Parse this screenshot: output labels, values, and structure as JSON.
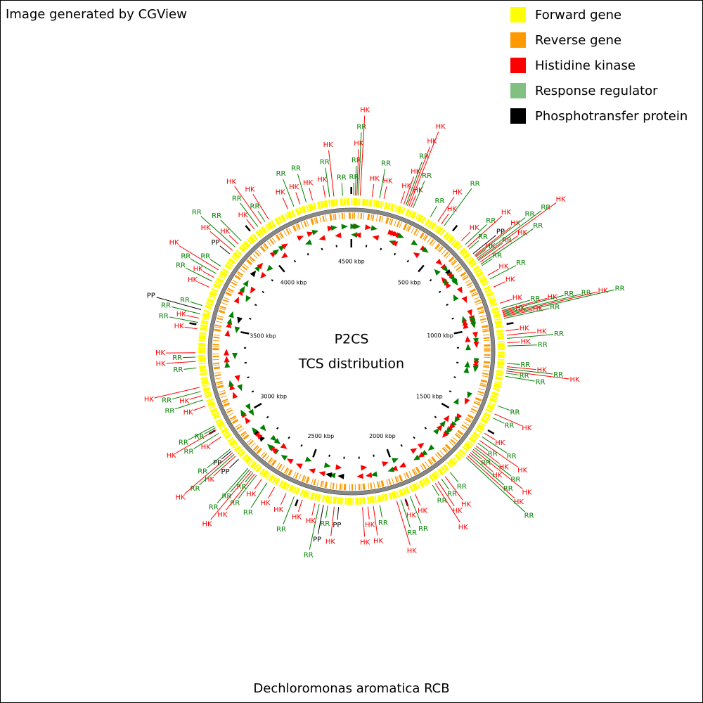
{
  "header": {
    "title": "Image generated by CGView"
  },
  "legend": [
    {
      "label": "Forward gene",
      "color": "#ffff00"
    },
    {
      "label": "Reverse gene",
      "color": "#ff9900"
    },
    {
      "label": "Histidine kinase",
      "color": "#ff0000"
    },
    {
      "label": "Response regulator",
      "color": "#80c080"
    },
    {
      "label": "Phosphotransfer protein",
      "color": "#000000"
    }
  ],
  "map": {
    "title": "P2CS",
    "subtitle": "TCS distribution",
    "caption": "Dechloromonas aromatica RCB",
    "length_kbp": 4501,
    "minor_tick_step": 100,
    "ticks": [
      {
        "value": 500,
        "label": "500 kbp"
      },
      {
        "value": 1000,
        "label": "1000 kbp"
      },
      {
        "value": 1500,
        "label": "1500 kbp"
      },
      {
        "value": 2000,
        "label": "2000 kbp"
      },
      {
        "value": 2500,
        "label": "2500 kbp"
      },
      {
        "value": 3000,
        "label": "3000 kbp"
      },
      {
        "value": 3500,
        "label": "3500 kbp"
      },
      {
        "value": 4000,
        "label": "4000 kbp"
      },
      {
        "value": 4500,
        "label": "4500 kbp"
      }
    ],
    "categories": [
      {
        "label": "HK",
        "color": "#ff0000"
      },
      {
        "label": "RR",
        "color": "#008000"
      },
      {
        "label": "PP",
        "color": "#000000"
      }
    ],
    "features": [
      {
        "pos": 10,
        "cat": 1,
        "strand": 1
      },
      {
        "pos": 18,
        "cat": 1,
        "strand": -1
      },
      {
        "pos": 25,
        "cat": 0,
        "strand": 1
      },
      {
        "pos": 32,
        "cat": 1,
        "strand": 1
      },
      {
        "pos": 40,
        "cat": 0,
        "strand": -1
      },
      {
        "pos": 95,
        "cat": 0,
        "strand": 1
      },
      {
        "pos": 130,
        "cat": 1,
        "strand": 1
      },
      {
        "pos": 150,
        "cat": 0,
        "strand": -1
      },
      {
        "pos": 230,
        "cat": 0,
        "strand": 1
      },
      {
        "pos": 245,
        "cat": 0,
        "strand": 1
      },
      {
        "pos": 255,
        "cat": 1,
        "strand": -1
      },
      {
        "pos": 262,
        "cat": 0,
        "strand": 1
      },
      {
        "pos": 270,
        "cat": 0,
        "strand": -1
      },
      {
        "pos": 280,
        "cat": 0,
        "strand": 1
      },
      {
        "pos": 290,
        "cat": 1,
        "strand": 1
      },
      {
        "pos": 380,
        "cat": 1,
        "strand": 1
      },
      {
        "pos": 420,
        "cat": 0,
        "strand": -1
      },
      {
        "pos": 440,
        "cat": 0,
        "strand": 1
      },
      {
        "pos": 455,
        "cat": 1,
        "strand": 1
      },
      {
        "pos": 560,
        "cat": 0,
        "strand": 1
      },
      {
        "pos": 585,
        "cat": 1,
        "strand": -1
      },
      {
        "pos": 600,
        "cat": 0,
        "strand": 1
      },
      {
        "pos": 612,
        "cat": 1,
        "strand": 1
      },
      {
        "pos": 640,
        "cat": 2,
        "strand": 1
      },
      {
        "pos": 650,
        "cat": 0,
        "strand": -1
      },
      {
        "pos": 655,
        "cat": 1,
        "strand": 1
      },
      {
        "pos": 660,
        "cat": 0,
        "strand": 1
      },
      {
        "pos": 668,
        "cat": 1,
        "strand": -1
      },
      {
        "pos": 675,
        "cat": 0,
        "strand": 1
      },
      {
        "pos": 680,
        "cat": 1,
        "strand": 1
      },
      {
        "pos": 690,
        "cat": 0,
        "strand": -1
      },
      {
        "pos": 700,
        "cat": 1,
        "strand": 1
      },
      {
        "pos": 708,
        "cat": 1,
        "strand": 1
      },
      {
        "pos": 760,
        "cat": 0,
        "strand": 1
      },
      {
        "pos": 780,
        "cat": 1,
        "strand": -1
      },
      {
        "pos": 820,
        "cat": 0,
        "strand": 1
      },
      {
        "pos": 900,
        "cat": 0,
        "strand": 1
      },
      {
        "pos": 925,
        "cat": 1,
        "strand": -1
      },
      {
        "pos": 935,
        "cat": 0,
        "strand": 1
      },
      {
        "pos": 940,
        "cat": 1,
        "strand": 1
      },
      {
        "pos": 945,
        "cat": 0,
        "strand": -1
      },
      {
        "pos": 950,
        "cat": 1,
        "strand": 1
      },
      {
        "pos": 955,
        "cat": 0,
        "strand": 1
      },
      {
        "pos": 960,
        "cat": 1,
        "strand": 1
      },
      {
        "pos": 965,
        "cat": 0,
        "strand": -1
      },
      {
        "pos": 972,
        "cat": 1,
        "strand": 1
      },
      {
        "pos": 1030,
        "cat": 0,
        "strand": 1
      },
      {
        "pos": 1050,
        "cat": 0,
        "strand": -1
      },
      {
        "pos": 1065,
        "cat": 1,
        "strand": 1
      },
      {
        "pos": 1085,
        "cat": 0,
        "strand": 1
      },
      {
        "pos": 1100,
        "cat": 1,
        "strand": -1
      },
      {
        "pos": 1180,
        "cat": 1,
        "strand": 1
      },
      {
        "pos": 1195,
        "cat": 0,
        "strand": 1
      },
      {
        "pos": 1205,
        "cat": 1,
        "strand": -1
      },
      {
        "pos": 1215,
        "cat": 0,
        "strand": 1
      },
      {
        "pos": 1225,
        "cat": 1,
        "strand": 1
      },
      {
        "pos": 1240,
        "cat": 1,
        "strand": -1
      },
      {
        "pos": 1380,
        "cat": 1,
        "strand": 1
      },
      {
        "pos": 1420,
        "cat": 0,
        "strand": 1
      },
      {
        "pos": 1440,
        "cat": 1,
        "strand": -1
      },
      {
        "pos": 1520,
        "cat": 0,
        "strand": 1
      },
      {
        "pos": 1540,
        "cat": 1,
        "strand": 1
      },
      {
        "pos": 1560,
        "cat": 0,
        "strand": -1
      },
      {
        "pos": 1575,
        "cat": 1,
        "strand": 1
      },
      {
        "pos": 1590,
        "cat": 0,
        "strand": 1
      },
      {
        "pos": 1600,
        "cat": 1,
        "strand": -1
      },
      {
        "pos": 1610,
        "cat": 0,
        "strand": 1
      },
      {
        "pos": 1620,
        "cat": 1,
        "strand": 1
      },
      {
        "pos": 1630,
        "cat": 0,
        "strand": -1
      },
      {
        "pos": 1640,
        "cat": 1,
        "strand": 1
      },
      {
        "pos": 1650,
        "cat": 0,
        "strand": 1
      },
      {
        "pos": 1660,
        "cat": 1,
        "strand": -1
      },
      {
        "pos": 1760,
        "cat": 1,
        "strand": 1
      },
      {
        "pos": 1790,
        "cat": 0,
        "strand": -1
      },
      {
        "pos": 1810,
        "cat": 1,
        "strand": 1
      },
      {
        "pos": 1830,
        "cat": 0,
        "strand": 1
      },
      {
        "pos": 1845,
        "cat": 0,
        "strand": -1
      },
      {
        "pos": 1860,
        "cat": 1,
        "strand": 1
      },
      {
        "pos": 1950,
        "cat": 0,
        "strand": 1
      },
      {
        "pos": 1975,
        "cat": 1,
        "strand": -1
      },
      {
        "pos": 2000,
        "cat": 0,
        "strand": 1
      },
      {
        "pos": 2020,
        "cat": 1,
        "strand": 1
      },
      {
        "pos": 2040,
        "cat": 0,
        "strand": -1
      },
      {
        "pos": 2120,
        "cat": 1,
        "strand": 1
      },
      {
        "pos": 2150,
        "cat": 0,
        "strand": 1
      },
      {
        "pos": 2175,
        "cat": 0,
        "strand": -1
      },
      {
        "pos": 2200,
        "cat": 0,
        "strand": 1
      },
      {
        "pos": 2310,
        "cat": 2,
        "strand": 1
      },
      {
        "pos": 2330,
        "cat": 0,
        "strand": -1
      },
      {
        "pos": 2360,
        "cat": 1,
        "strand": 1
      },
      {
        "pos": 2380,
        "cat": 2,
        "strand": 1
      },
      {
        "pos": 2400,
        "cat": 1,
        "strand": -1
      },
      {
        "pos": 2420,
        "cat": 0,
        "strand": 1
      },
      {
        "pos": 2480,
        "cat": 0,
        "strand": 1
      },
      {
        "pos": 2520,
        "cat": 1,
        "strand": -1
      },
      {
        "pos": 2560,
        "cat": 0,
        "strand": 1
      },
      {
        "pos": 2620,
        "cat": 0,
        "strand": 1
      },
      {
        "pos": 2660,
        "cat": 1,
        "strand": 1
      },
      {
        "pos": 2690,
        "cat": 0,
        "strand": -1
      },
      {
        "pos": 2720,
        "cat": 1,
        "strand": 1
      },
      {
        "pos": 2730,
        "cat": 0,
        "strand": 1
      },
      {
        "pos": 2740,
        "cat": 1,
        "strand": -1
      },
      {
        "pos": 2750,
        "cat": 0,
        "strand": 1
      },
      {
        "pos": 2760,
        "cat": 1,
        "strand": 1
      },
      {
        "pos": 2770,
        "cat": 1,
        "strand": -1
      },
      {
        "pos": 2830,
        "cat": 2,
        "strand": 1
      },
      {
        "pos": 2850,
        "cat": 0,
        "strand": 1
      },
      {
        "pos": 2860,
        "cat": 1,
        "strand": -1
      },
      {
        "pos": 2870,
        "cat": 0,
        "strand": 1
      },
      {
        "pos": 2880,
        "cat": 2,
        "strand": 1
      },
      {
        "pos": 2890,
        "cat": 1,
        "strand": 1
      },
      {
        "pos": 2960,
        "cat": 0,
        "strand": 1
      },
      {
        "pos": 2980,
        "cat": 1,
        "strand": -1
      },
      {
        "pos": 3000,
        "cat": 0,
        "strand": 1
      },
      {
        "pos": 3010,
        "cat": 1,
        "strand": 1
      },
      {
        "pos": 3020,
        "cat": 1,
        "strand": -1
      },
      {
        "pos": 3120,
        "cat": 0,
        "strand": 1
      },
      {
        "pos": 3150,
        "cat": 1,
        "strand": -1
      },
      {
        "pos": 3170,
        "cat": 0,
        "strand": 1
      },
      {
        "pos": 3190,
        "cat": 1,
        "strand": 1
      },
      {
        "pos": 3210,
        "cat": 0,
        "strand": -1
      },
      {
        "pos": 3300,
        "cat": 1,
        "strand": 1
      },
      {
        "pos": 3330,
        "cat": 0,
        "strand": 1
      },
      {
        "pos": 3350,
        "cat": 1,
        "strand": -1
      },
      {
        "pos": 3370,
        "cat": 0,
        "strand": 1
      },
      {
        "pos": 3480,
        "cat": 0,
        "strand": 1
      },
      {
        "pos": 3510,
        "cat": 1,
        "strand": -1
      },
      {
        "pos": 3530,
        "cat": 0,
        "strand": 1
      },
      {
        "pos": 3550,
        "cat": 1,
        "strand": 1
      },
      {
        "pos": 3570,
        "cat": 2,
        "strand": -1
      },
      {
        "pos": 3590,
        "cat": 1,
        "strand": 1
      },
      {
        "pos": 3680,
        "cat": 0,
        "strand": 1
      },
      {
        "pos": 3710,
        "cat": 1,
        "strand": -1
      },
      {
        "pos": 3730,
        "cat": 0,
        "strand": 1
      },
      {
        "pos": 3750,
        "cat": 1,
        "strand": 1
      },
      {
        "pos": 3770,
        "cat": 0,
        "strand": -1
      },
      {
        "pos": 3790,
        "cat": 1,
        "strand": 1
      },
      {
        "pos": 3860,
        "cat": 2,
        "strand": 1
      },
      {
        "pos": 3880,
        "cat": 0,
        "strand": -1
      },
      {
        "pos": 3900,
        "cat": 1,
        "strand": 1
      },
      {
        "pos": 3920,
        "cat": 0,
        "strand": 1
      },
      {
        "pos": 3940,
        "cat": 1,
        "strand": -1
      },
      {
        "pos": 4020,
        "cat": 0,
        "strand": 1
      },
      {
        "pos": 4040,
        "cat": 1,
        "strand": 1
      },
      {
        "pos": 4060,
        "cat": 0,
        "strand": -1
      },
      {
        "pos": 4080,
        "cat": 1,
        "strand": 1
      },
      {
        "pos": 4100,
        "cat": 0,
        "strand": 1
      },
      {
        "pos": 4200,
        "cat": 0,
        "strand": 1
      },
      {
        "pos": 4230,
        "cat": 1,
        "strand": -1
      },
      {
        "pos": 4260,
        "cat": 0,
        "strand": 1
      },
      {
        "pos": 4290,
        "cat": 1,
        "strand": 1
      },
      {
        "pos": 4320,
        "cat": 0,
        "strand": -1
      },
      {
        "pos": 4380,
        "cat": 0,
        "strand": 1
      },
      {
        "pos": 4400,
        "cat": 1,
        "strand": 1
      },
      {
        "pos": 4420,
        "cat": 0,
        "strand": -1
      },
      {
        "pos": 4460,
        "cat": 1,
        "strand": 1
      }
    ]
  }
}
